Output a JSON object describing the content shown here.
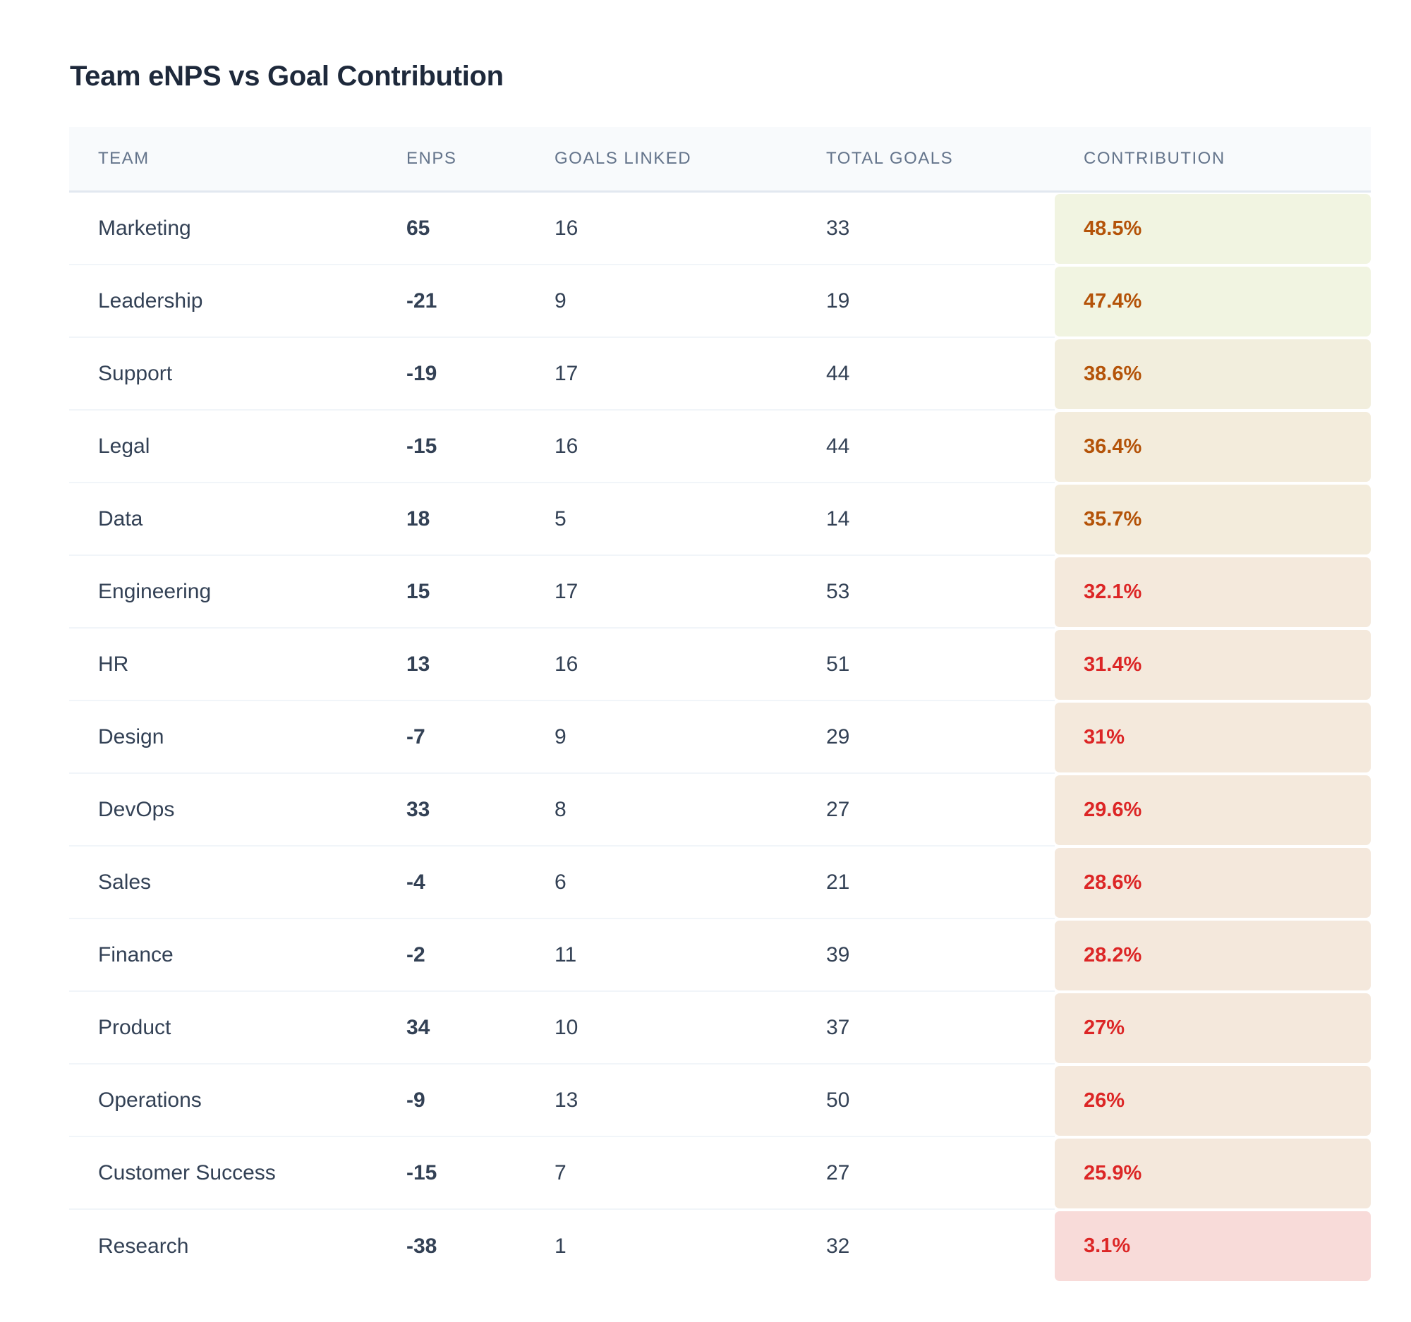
{
  "title": "Team eNPS vs Goal Contribution",
  "columns": [
    "TEAM",
    "ENPS",
    "GOALS LINKED",
    "TOTAL GOALS",
    "CONTRIBUTION"
  ],
  "colors": {
    "high_text": "#b45309",
    "low_text": "#dc2626"
  },
  "rows": [
    {
      "team": "Marketing",
      "enps": "65",
      "linked": "16",
      "total": "33",
      "contribution": "48.5%",
      "bg": "#f1f4e1",
      "fg": "#b45309"
    },
    {
      "team": "Leadership",
      "enps": "-21",
      "linked": "9",
      "total": "19",
      "contribution": "47.4%",
      "bg": "#f1f4e1",
      "fg": "#b45309"
    },
    {
      "team": "Support",
      "enps": "-19",
      "linked": "17",
      "total": "44",
      "contribution": "38.6%",
      "bg": "#f2eedd",
      "fg": "#b45309"
    },
    {
      "team": "Legal",
      "enps": "-15",
      "linked": "16",
      "total": "44",
      "contribution": "36.4%",
      "bg": "#f3ecdc",
      "fg": "#b45309"
    },
    {
      "team": "Data",
      "enps": "18",
      "linked": "5",
      "total": "14",
      "contribution": "35.7%",
      "bg": "#f3ecdc",
      "fg": "#b45309"
    },
    {
      "team": "Engineering",
      "enps": "15",
      "linked": "17",
      "total": "53",
      "contribution": "32.1%",
      "bg": "#f4e9dc",
      "fg": "#dc2626"
    },
    {
      "team": "HR",
      "enps": "13",
      "linked": "16",
      "total": "51",
      "contribution": "31.4%",
      "bg": "#f4e9dc",
      "fg": "#dc2626"
    },
    {
      "team": "Design",
      "enps": "-7",
      "linked": "9",
      "total": "29",
      "contribution": "31%",
      "bg": "#f4e9dc",
      "fg": "#dc2626"
    },
    {
      "team": "DevOps",
      "enps": "33",
      "linked": "8",
      "total": "27",
      "contribution": "29.6%",
      "bg": "#f4e9dc",
      "fg": "#dc2626"
    },
    {
      "team": "Sales",
      "enps": "-4",
      "linked": "6",
      "total": "21",
      "contribution": "28.6%",
      "bg": "#f4e8dc",
      "fg": "#dc2626"
    },
    {
      "team": "Finance",
      "enps": "-2",
      "linked": "11",
      "total": "39",
      "contribution": "28.2%",
      "bg": "#f4e8dc",
      "fg": "#dc2626"
    },
    {
      "team": "Product",
      "enps": "34",
      "linked": "10",
      "total": "37",
      "contribution": "27%",
      "bg": "#f4e8dc",
      "fg": "#dc2626"
    },
    {
      "team": "Operations",
      "enps": "-9",
      "linked": "13",
      "total": "50",
      "contribution": "26%",
      "bg": "#f4e8dc",
      "fg": "#dc2626"
    },
    {
      "team": "Customer Success",
      "enps": "-15",
      "linked": "7",
      "total": "27",
      "contribution": "25.9%",
      "bg": "#f4e8dc",
      "fg": "#dc2626"
    },
    {
      "team": "Research",
      "enps": "-38",
      "linked": "1",
      "total": "32",
      "contribution": "3.1%",
      "bg": "#f8dbd9",
      "fg": "#dc2626"
    }
  ]
}
